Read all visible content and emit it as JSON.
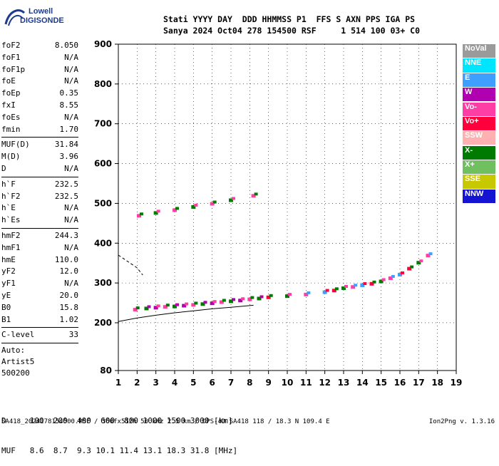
{
  "logo": {
    "line1": "Lowell",
    "line2": "DIGISONDE"
  },
  "header": {
    "row1": "Stati YYYY DAY  DDD HHMMSS P1  FFS S AXN PPS IGA PS",
    "row2": "Sanya 2024 Oct04 278 154500 RSF     1 514 100 03+ C0"
  },
  "params_group1": [
    {
      "label": "foF2",
      "value": "8.050"
    },
    {
      "label": "foF1",
      "value": "N/A"
    },
    {
      "label": "foF1p",
      "value": "N/A"
    },
    {
      "label": "foE",
      "value": "N/A"
    },
    {
      "label": "foEp",
      "value": "0.35"
    },
    {
      "label": "fxI",
      "value": "8.55"
    },
    {
      "label": "foEs",
      "value": "N/A"
    },
    {
      "label": "fmin",
      "value": "1.70"
    }
  ],
  "params_group2": [
    {
      "label": "MUF(D)",
      "value": "31.84"
    },
    {
      "label": "M(D)",
      "value": "3.96"
    },
    {
      "label": "D",
      "value": "N/A"
    }
  ],
  "params_group3": [
    {
      "label": "h`F",
      "value": "232.5"
    },
    {
      "label": "h`F2",
      "value": "232.5"
    },
    {
      "label": "h`E",
      "value": "N/A"
    },
    {
      "label": "h`Es",
      "value": "N/A"
    }
  ],
  "params_group4": [
    {
      "label": "hmF2",
      "value": "244.3"
    },
    {
      "label": "hmF1",
      "value": "N/A"
    },
    {
      "label": "hmE",
      "value": "110.0"
    },
    {
      "label": "yF2",
      "value": "12.0"
    },
    {
      "label": "yF1",
      "value": "N/A"
    },
    {
      "label": "yE",
      "value": "20.0"
    },
    {
      "label": "B0",
      "value": "15.8"
    },
    {
      "label": "B1",
      "value": "1.02"
    }
  ],
  "clevel": {
    "label": "C-level",
    "value": "33"
  },
  "auto": {
    "line1": "Auto:",
    "line2": "Artist5",
    "line3": "500200"
  },
  "legend": [
    {
      "label": "NoVal",
      "color": "#9a9a9a"
    },
    {
      "label": "NNE",
      "color": "#00e5ff"
    },
    {
      "label": "E",
      "color": "#3f9fff"
    },
    {
      "label": "W",
      "color": "#b000b0"
    },
    {
      "label": "Vo-",
      "color": "#ff3ea5"
    },
    {
      "label": "Vo+",
      "color": "#ff003c"
    },
    {
      "label": "SSW",
      "color": "#ffb0b0"
    },
    {
      "label": "X-",
      "color": "#007a00"
    },
    {
      "label": "X+",
      "color": "#70c060"
    },
    {
      "label": "SSE",
      "color": "#c8c800"
    },
    {
      "label": "NNW",
      "color": "#1414d2"
    }
  ],
  "muf_table": {
    "row1": "D     100  200  400  600  800 1000 1500 3000 [km]",
    "row2": "MUF   8.6  8.7  9.3 10.1 11.4 13.1 18.3 31.8 [MHz]"
  },
  "footer": {
    "left": "SA418_2024278154500.RSF / 360fx512h 50 kHz 2.5 km / DPS-4D SA418 118 / 18.3 N 109.4 E",
    "right": "Ion2Png v. 1.3.16"
  },
  "chart_data": {
    "type": "scatter",
    "title": "",
    "xlabel": "",
    "ylabel": "",
    "xlim": [
      1,
      19
    ],
    "ylim": [
      80,
      900
    ],
    "xticks": [
      1,
      2,
      3,
      4,
      5,
      6,
      7,
      8,
      9,
      10,
      11,
      12,
      13,
      14,
      15,
      16,
      17,
      18,
      19
    ],
    "yticks": [
      80,
      200,
      300,
      400,
      500,
      600,
      700,
      800,
      900
    ],
    "grid": true,
    "trace_x": {
      "x": [
        1.9,
        2.5,
        3,
        3.5,
        4,
        4.5,
        5,
        5.5,
        6,
        6.5,
        7,
        7.5,
        8,
        8.5
      ],
      "y": [
        232,
        235,
        237,
        239,
        240,
        242,
        244,
        246,
        248,
        251,
        253,
        255,
        258,
        260
      ]
    },
    "trace_o": {
      "x": [
        9,
        10,
        11,
        12,
        12.5,
        13,
        13.5,
        14,
        14.5,
        15,
        15.5,
        16,
        16.5,
        17,
        17.5
      ],
      "y": [
        263,
        266,
        270,
        276,
        280,
        286,
        289,
        293,
        297,
        303,
        311,
        320,
        335,
        350,
        368
      ]
    },
    "second_hop": {
      "x": [
        2.1,
        3,
        4,
        5,
        6,
        7,
        8.2
      ],
      "y": [
        468,
        475,
        482,
        490,
        498,
        507,
        518
      ]
    },
    "profile_curve": {
      "x": [
        1,
        2,
        3,
        4,
        5,
        6,
        7,
        8.2
      ],
      "y": [
        203,
        212,
        219,
        225,
        230,
        235,
        239,
        244
      ]
    },
    "dashed_curve": {
      "x": [
        1,
        1.5,
        2,
        2.3
      ],
      "y": [
        370,
        354,
        338,
        320
      ]
    }
  }
}
